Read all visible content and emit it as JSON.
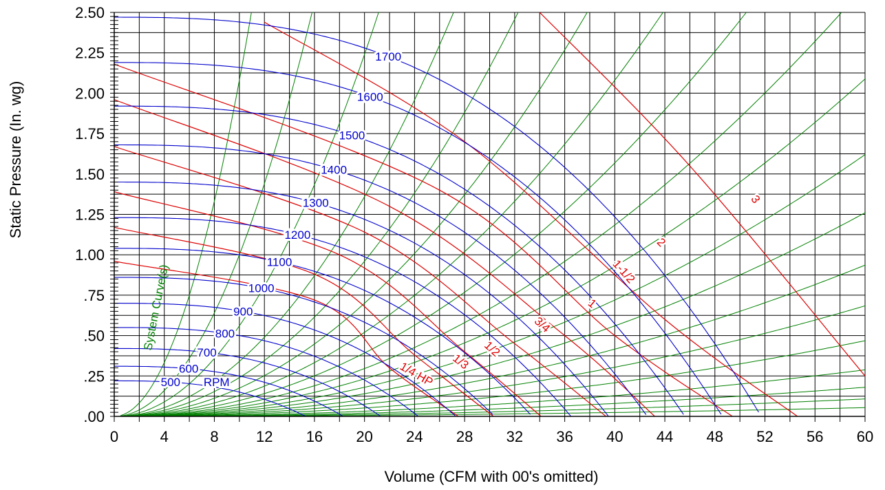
{
  "chart_data": {
    "type": "line",
    "title": "",
    "xlabel": "Volume (CFM with 00's omitted)",
    "ylabel": "Static Pressure (In. wg)",
    "xlim": [
      0,
      60
    ],
    "ylim": [
      0,
      2.5
    ],
    "x_ticks": [
      0,
      4,
      8,
      12,
      16,
      20,
      24,
      28,
      32,
      36,
      40,
      44,
      48,
      52,
      56,
      60
    ],
    "x_tick_labels": [
      "0",
      "4",
      "8",
      "12",
      "16",
      "20",
      "24",
      "28",
      "32",
      "36",
      "40",
      "44",
      "48",
      "52",
      "56",
      "60"
    ],
    "y_ticks": [
      0,
      0.25,
      0.5,
      0.75,
      1.0,
      1.25,
      1.5,
      1.75,
      2.0,
      2.25,
      2.5
    ],
    "y_tick_labels": [
      ".00",
      ".25",
      ".50",
      ".75",
      "1.00",
      "1.25",
      "1.50",
      "1.75",
      "2.00",
      "2.25",
      "2.50"
    ],
    "grid": true,
    "colors": {
      "rpm": "#0000cc",
      "hp": "#dd0000",
      "system": "#008000",
      "grid": "#000000"
    },
    "rpm_curves": [
      {
        "rpm": 500,
        "label": "500",
        "shutoff_sp": 0.22,
        "free_cfm": 15.3
      },
      {
        "rpm": 600,
        "label": "600",
        "shutoff_sp": 0.31,
        "free_cfm": 18.3
      },
      {
        "rpm": 700,
        "label": "700",
        "shutoff_sp": 0.42,
        "free_cfm": 21.3
      },
      {
        "rpm": 800,
        "label": "800",
        "shutoff_sp": 0.55,
        "free_cfm": 24.3
      },
      {
        "rpm": 900,
        "label": "900",
        "shutoff_sp": 0.7,
        "free_cfm": 27.3
      },
      {
        "rpm": 1000,
        "label": "1000",
        "shutoff_sp": 0.86,
        "free_cfm": 30.4
      },
      {
        "rpm": 1100,
        "label": "1100",
        "shutoff_sp": 1.04,
        "free_cfm": 33.4
      },
      {
        "rpm": 1200,
        "label": "1200",
        "shutoff_sp": 1.23,
        "free_cfm": 36.5
      },
      {
        "rpm": 1300,
        "label": "1300",
        "shutoff_sp": 1.45,
        "free_cfm": 39.5
      },
      {
        "rpm": 1400,
        "label": "1400",
        "shutoff_sp": 1.68,
        "free_cfm": 42.6
      },
      {
        "rpm": 1500,
        "label": "1500",
        "shutoff_sp": 1.92,
        "free_cfm": 45.6
      },
      {
        "rpm": 1600,
        "label": "1600",
        "shutoff_sp": 2.19,
        "free_cfm": 48.6
      },
      {
        "rpm": 1700,
        "label": "1700",
        "shutoff_sp": 2.47,
        "free_cfm": 51.7
      }
    ],
    "rpm_suffix": "RPM",
    "hp_curves": [
      {
        "label": "1/4 HP",
        "points": [
          [
            0,
            0.96
          ],
          [
            16,
            0.72
          ],
          [
            22,
            0.3
          ],
          [
            27.5,
            0
          ]
        ]
      },
      {
        "label": "1/3",
        "points": [
          [
            0,
            1.17
          ],
          [
            16,
            0.88
          ],
          [
            24,
            0.38
          ],
          [
            30.3,
            0
          ]
        ]
      },
      {
        "label": "1/2",
        "points": [
          [
            0,
            1.39
          ],
          [
            18,
            1.0
          ],
          [
            28,
            0.4
          ],
          [
            34.1,
            0
          ]
        ]
      },
      {
        "label": "3/4",
        "points": [
          [
            0,
            1.67
          ],
          [
            20,
            1.14
          ],
          [
            32,
            0.45
          ],
          [
            39.3,
            0
          ]
        ]
      },
      {
        "label": "1",
        "points": [
          [
            0,
            1.96
          ],
          [
            22,
            1.3
          ],
          [
            36,
            0.5
          ],
          [
            43.2,
            0
          ]
        ]
      },
      {
        "label": "1-1/2",
        "points": [
          [
            0,
            2.18
          ],
          [
            26,
            1.4
          ],
          [
            40,
            0.5
          ],
          [
            49.4,
            0
          ]
        ]
      },
      {
        "label": "2",
        "points": [
          [
            12,
            2.44
          ],
          [
            28,
            1.7
          ],
          [
            44,
            0.6
          ],
          [
            54.6,
            0
          ]
        ]
      },
      {
        "label": "3",
        "points": [
          [
            34,
            2.5
          ],
          [
            46,
            1.55
          ],
          [
            60,
            0.25
          ]
        ]
      }
    ],
    "system_curves_label": "System Curve(s)",
    "system_curves": [
      {
        "k": 0.0208
      },
      {
        "k": 0.01
      },
      {
        "k": 0.0056
      },
      {
        "k": 0.0034
      },
      {
        "k": 0.0024
      },
      {
        "k": 0.00175
      },
      {
        "k": 0.0013
      },
      {
        "k": 0.00098
      },
      {
        "k": 0.00074
      },
      {
        "k": 0.00058
      },
      {
        "k": 0.00045
      },
      {
        "k": 0.00035
      },
      {
        "k": 0.00026
      },
      {
        "k": 0.00019
      },
      {
        "k": 0.00013
      },
      {
        "k": 8e-05
      },
      {
        "k": 5e-05
      },
      {
        "k": 3e-05
      },
      {
        "k": 1.5e-05
      }
    ]
  }
}
